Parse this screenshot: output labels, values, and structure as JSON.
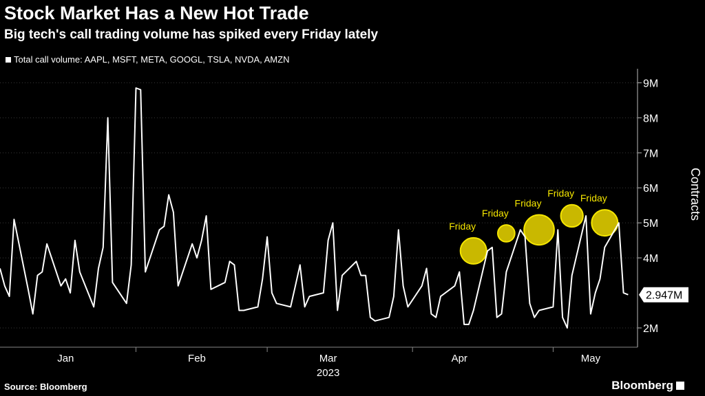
{
  "header": {
    "title": "Stock Market Has a New Hot Trade",
    "subtitle": "Big tech's call trading volume has spiked every Friday lately"
  },
  "footer": {
    "source": "Source: Bloomberg",
    "brand": "Bloomberg"
  },
  "colors": {
    "background": "#000000",
    "line": "#ffffff",
    "grid": "#3a3a3a",
    "highlight_fill": "#c9b800",
    "highlight_stroke": "#f5e600",
    "annotation_text": "#f5e600"
  },
  "chart_data": {
    "type": "line",
    "title": "Stock Market Has a New Hot Trade",
    "ylabel": "Contracts",
    "xlabel": "2023",
    "ylim": [
      1.45,
      9.4
    ],
    "yticks": [
      2,
      4,
      5,
      6,
      7,
      8,
      9
    ],
    "ytick_labels": [
      "2M",
      "4M",
      "5M",
      "6M",
      "7M",
      "8M",
      "9M"
    ],
    "grid": true,
    "legend": "top-left",
    "x_start": "2023-01-03",
    "x_end": "2023-05-19",
    "x_ticks": [
      {
        "label": "Jan",
        "date": "2023-01-17"
      },
      {
        "label": "Feb",
        "date": "2023-02-14"
      },
      {
        "label": "Mar",
        "date": "2023-03-14"
      },
      {
        "label": "Apr",
        "date": "2023-04-11"
      },
      {
        "label": "May",
        "date": "2023-05-09"
      }
    ],
    "year_label": "2023",
    "series": [
      {
        "name": "Total call volume: AAPL, MSFT, META, GOOGL, TSLA, NVDA, AMZN",
        "points": [
          [
            "2023-01-03",
            3.7
          ],
          [
            "2023-01-04",
            3.2
          ],
          [
            "2023-01-05",
            2.9
          ],
          [
            "2023-01-06",
            5.1
          ],
          [
            "2023-01-09",
            3.1
          ],
          [
            "2023-01-10",
            2.4
          ],
          [
            "2023-01-11",
            3.5
          ],
          [
            "2023-01-12",
            3.6
          ],
          [
            "2023-01-13",
            4.4
          ],
          [
            "2023-01-16",
            3.2
          ],
          [
            "2023-01-17",
            3.4
          ],
          [
            "2023-01-18",
            3.0
          ],
          [
            "2023-01-19",
            4.5
          ],
          [
            "2023-01-20",
            3.6
          ],
          [
            "2023-01-23",
            2.6
          ],
          [
            "2023-01-24",
            3.7
          ],
          [
            "2023-01-25",
            4.3
          ],
          [
            "2023-01-26",
            8.0
          ],
          [
            "2023-01-27",
            3.3
          ],
          [
            "2023-01-30",
            2.7
          ],
          [
            "2023-01-31",
            3.8
          ],
          [
            "2023-02-01",
            8.85
          ],
          [
            "2023-02-02",
            8.8
          ],
          [
            "2023-02-03",
            3.6
          ],
          [
            "2023-02-06",
            4.8
          ],
          [
            "2023-02-07",
            4.9
          ],
          [
            "2023-02-08",
            5.8
          ],
          [
            "2023-02-09",
            5.3
          ],
          [
            "2023-02-10",
            3.2
          ],
          [
            "2023-02-13",
            4.4
          ],
          [
            "2023-02-14",
            4.0
          ],
          [
            "2023-02-15",
            4.5
          ],
          [
            "2023-02-16",
            5.2
          ],
          [
            "2023-02-17",
            3.1
          ],
          [
            "2023-02-20",
            3.3
          ],
          [
            "2023-02-21",
            3.9
          ],
          [
            "2023-02-22",
            3.8
          ],
          [
            "2023-02-23",
            2.5
          ],
          [
            "2023-02-24",
            2.5
          ],
          [
            "2023-02-27",
            2.6
          ],
          [
            "2023-02-28",
            3.4
          ],
          [
            "2023-03-01",
            4.6
          ],
          [
            "2023-03-02",
            3.0
          ],
          [
            "2023-03-03",
            2.7
          ],
          [
            "2023-03-06",
            2.6
          ],
          [
            "2023-03-07",
            3.2
          ],
          [
            "2023-03-08",
            3.8
          ],
          [
            "2023-03-09",
            2.6
          ],
          [
            "2023-03-10",
            2.9
          ],
          [
            "2023-03-13",
            3.0
          ],
          [
            "2023-03-14",
            4.5
          ],
          [
            "2023-03-15",
            5.0
          ],
          [
            "2023-03-16",
            2.5
          ],
          [
            "2023-03-17",
            3.5
          ],
          [
            "2023-03-20",
            3.9
          ],
          [
            "2023-03-21",
            3.5
          ],
          [
            "2023-03-22",
            3.5
          ],
          [
            "2023-03-23",
            2.3
          ],
          [
            "2023-03-24",
            2.2
          ],
          [
            "2023-03-27",
            2.3
          ],
          [
            "2023-03-28",
            2.9
          ],
          [
            "2023-03-29",
            4.8
          ],
          [
            "2023-03-30",
            3.2
          ],
          [
            "2023-03-31",
            2.6
          ],
          [
            "2023-04-03",
            3.2
          ],
          [
            "2023-04-04",
            3.7
          ],
          [
            "2023-04-05",
            2.4
          ],
          [
            "2023-04-06",
            2.3
          ],
          [
            "2023-04-07",
            2.9
          ],
          [
            "2023-04-10",
            3.2
          ],
          [
            "2023-04-11",
            3.6
          ],
          [
            "2023-04-12",
            2.1
          ],
          [
            "2023-04-13",
            2.1
          ],
          [
            "2023-04-14",
            2.5
          ],
          [
            "2023-04-17",
            4.2
          ],
          [
            "2023-04-18",
            4.3
          ],
          [
            "2023-04-19",
            2.3
          ],
          [
            "2023-04-20",
            2.4
          ],
          [
            "2023-04-21",
            3.6
          ],
          [
            "2023-04-24",
            4.8
          ],
          [
            "2023-04-25",
            4.6
          ],
          [
            "2023-04-26",
            2.7
          ],
          [
            "2023-04-27",
            2.3
          ],
          [
            "2023-04-28",
            2.5
          ],
          [
            "2023-05-01",
            2.6
          ],
          [
            "2023-05-02",
            4.8
          ],
          [
            "2023-05-03",
            2.3
          ],
          [
            "2023-05-04",
            2.0
          ],
          [
            "2023-05-05",
            3.5
          ],
          [
            "2023-05-08",
            5.2
          ],
          [
            "2023-05-09",
            2.4
          ],
          [
            "2023-05-10",
            3.0
          ],
          [
            "2023-05-11",
            3.4
          ],
          [
            "2023-05-12",
            4.3
          ],
          [
            "2023-05-15",
            5.0
          ],
          [
            "2023-05-16",
            3.0
          ],
          [
            "2023-05-17",
            2.947
          ]
        ]
      }
    ],
    "last_value_label": "2.947M",
    "annotations": [
      {
        "label": "Friday",
        "date": "2023-04-14",
        "value": 4.2,
        "size": 1.0
      },
      {
        "label": "Friday",
        "date": "2023-04-21",
        "value": 4.7,
        "size": 0.65
      },
      {
        "label": "Friday",
        "date": "2023-04-28",
        "value": 4.8,
        "size": 1.15
      },
      {
        "label": "Friday",
        "date": "2023-05-05",
        "value": 5.2,
        "size": 0.85
      },
      {
        "label": "Friday",
        "date": "2023-05-12",
        "value": 5.0,
        "size": 1.0
      }
    ]
  }
}
